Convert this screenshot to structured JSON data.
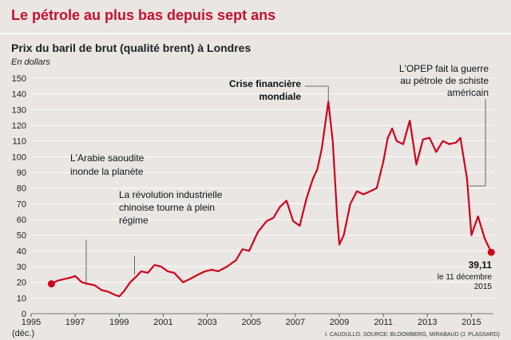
{
  "title": "Le pétrole au plus bas depuis sept ans",
  "chart_data": {
    "type": "line",
    "title": "Prix du baril de brut (qualité brent) à Londres",
    "unit": "En dollars",
    "ylim": [
      0,
      150
    ],
    "y_ticks": [
      "0",
      "10",
      "20",
      "30",
      "40",
      "50",
      "60",
      "70",
      "80",
      "90",
      "100",
      "110",
      "120",
      "130",
      "140",
      "150"
    ],
    "x_ticks": [
      "1995",
      "1997",
      "1999",
      "2001",
      "2003",
      "2005",
      "2007",
      "2009",
      "2011",
      "2013",
      "2015"
    ],
    "x_first_tick_note": "(déc.)",
    "grid": true,
    "series": [
      {
        "color": "#d0021b",
        "x": [
          1995.92,
          1996.2,
          1996.5,
          1996.8,
          1997.0,
          1997.3,
          1997.6,
          1997.9,
          1998.2,
          1998.5,
          1998.8,
          1999.0,
          1999.2,
          1999.5,
          1999.8,
          2000.0,
          2000.3,
          2000.6,
          2000.9,
          2001.2,
          2001.5,
          2001.9,
          2002.2,
          2002.6,
          2002.9,
          2003.2,
          2003.5,
          2003.9,
          2004.3,
          2004.6,
          2004.9,
          2005.3,
          2005.7,
          2006.0,
          2006.3,
          2006.6,
          2006.9,
          2007.2,
          2007.5,
          2007.8,
          2008.0,
          2008.2,
          2008.5,
          2008.7,
          2008.9,
          2009.0,
          2009.2,
          2009.5,
          2009.8,
          2010.1,
          2010.4,
          2010.7,
          2011.0,
          2011.2,
          2011.4,
          2011.6,
          2011.9,
          2012.2,
          2012.5,
          2012.8,
          2013.1,
          2013.4,
          2013.7,
          2014.0,
          2014.3,
          2014.5,
          2014.8,
          2015.0,
          2015.3,
          2015.6,
          2015.9
        ],
        "values": [
          19,
          21,
          22,
          23,
          24,
          20,
          19,
          18,
          15,
          14,
          12,
          11,
          14,
          20,
          24,
          27,
          26,
          31,
          30,
          27,
          26,
          20,
          22,
          25,
          27,
          28,
          27,
          30,
          34,
          41,
          40,
          52,
          59,
          61,
          68,
          72,
          59,
          56,
          73,
          86,
          92,
          105,
          135,
          110,
          62,
          44,
          50,
          70,
          78,
          76,
          78,
          80,
          97,
          112,
          118,
          110,
          108,
          123,
          95,
          111,
          112,
          103,
          110,
          108,
          109,
          112,
          86,
          50,
          62,
          48,
          39.11
        ]
      }
    ],
    "annotations": [
      {
        "lines": [
          "L'Arabie saoudite",
          "inonde la planète"
        ]
      },
      {
        "lines": [
          "La révolution industrielle",
          "chinoise tourne à plein",
          "régime"
        ]
      },
      {
        "lines": [
          "Crise financière",
          "mondiale"
        ]
      },
      {
        "lines": [
          "L'OPEP fait la guerre",
          "au pétrole de schiste",
          "américain"
        ]
      }
    ],
    "last_value": {
      "value": "39,11",
      "date_lines": [
        "le 11 décembre",
        "2015"
      ]
    }
  },
  "source": "I. CAUDULLO. SOURCE: BLOOMBERG, MIRABAUD (J. PLASSARD)"
}
